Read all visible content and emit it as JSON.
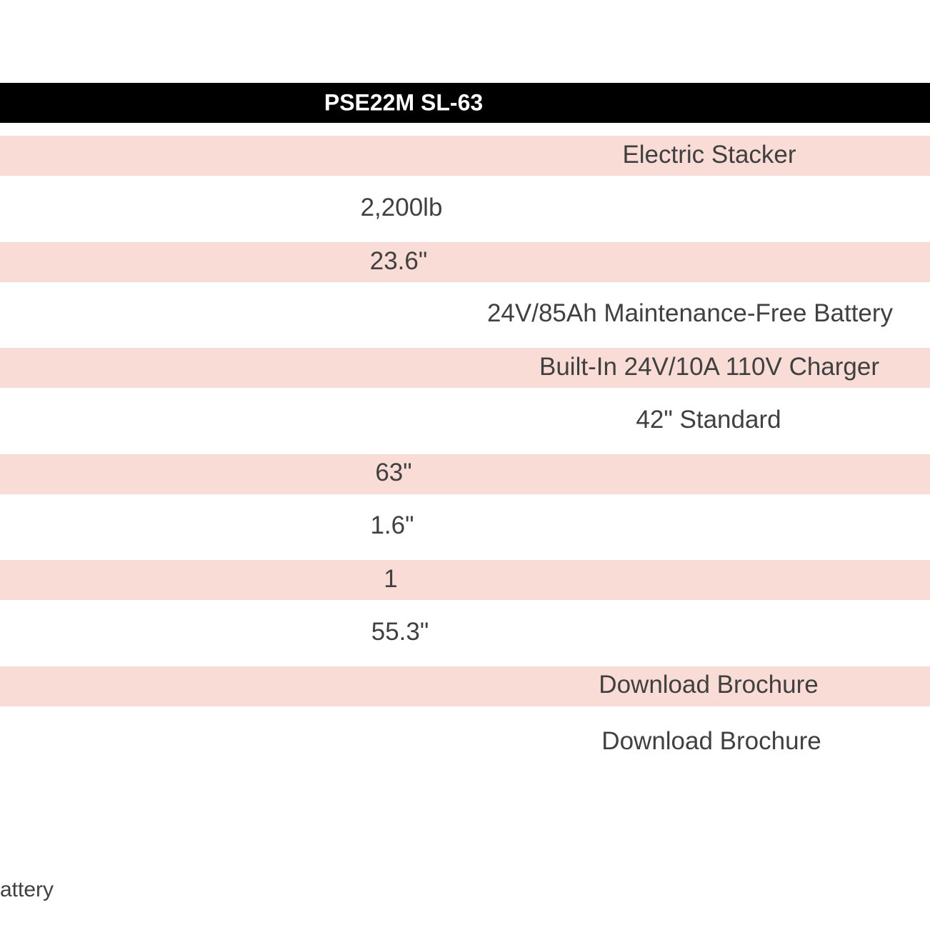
{
  "table": {
    "header": "PSE22M SL-63",
    "rows": [
      {
        "value": "Electric Stacker",
        "shaded": true
      },
      {
        "value": "2,200lb",
        "shaded": false
      },
      {
        "value": "23.6\"",
        "shaded": true
      },
      {
        "value": "24V/85Ah Maintenance-Free Battery",
        "shaded": false
      },
      {
        "value": "Built-In 24V/10A 110V Charger",
        "shaded": true
      },
      {
        "value": "42\" Standard",
        "shaded": false
      },
      {
        "value": "63\"",
        "shaded": true
      },
      {
        "value": "1.6\"",
        "shaded": false
      },
      {
        "value": "1",
        "shaded": true
      },
      {
        "value": "55.3\"",
        "shaded": false
      },
      {
        "value": "Download Brochure",
        "shaded": true
      },
      {
        "value": "Download Brochure",
        "shaded": false
      }
    ],
    "band_color": "#fadcd6"
  },
  "footer_fragment": "attery"
}
